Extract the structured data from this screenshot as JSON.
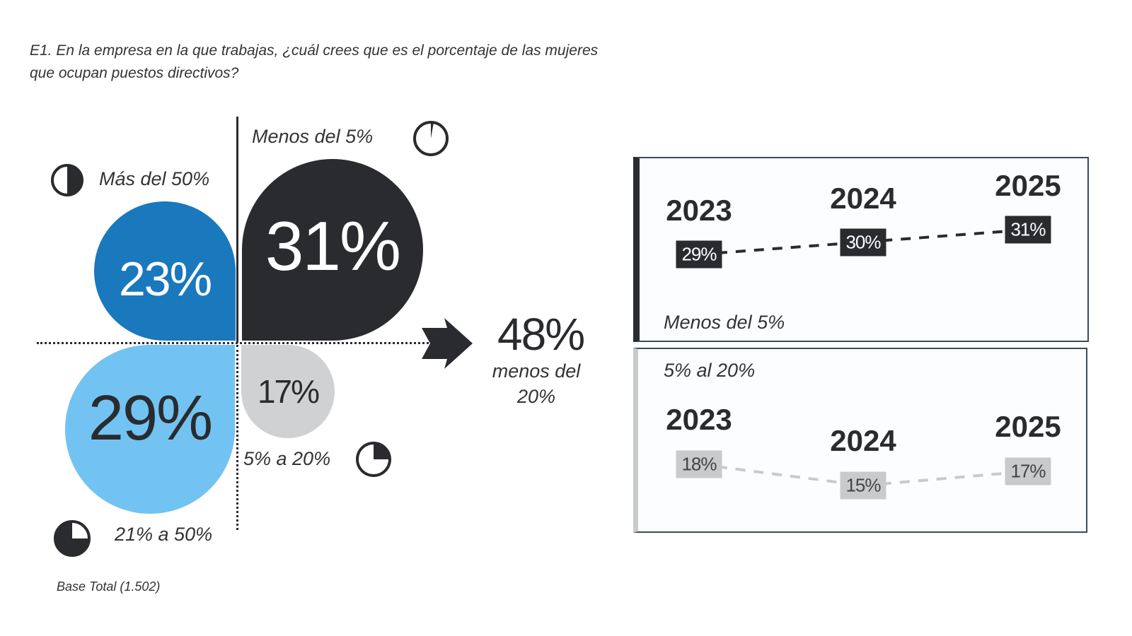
{
  "question": "E1. En la empresa en la que trabajas, ¿cuál crees que es el porcentaje de las mujeres que ocupan puestos directivos?",
  "base": "Base Total (1.502)",
  "quadrants": [
    {
      "label": "Más del 50%",
      "value": "23%",
      "color": "#1a78bd",
      "icon": "pie-half-icon"
    },
    {
      "label": "Menos del 5%",
      "value": "31%",
      "color": "#2a2b2e",
      "icon": "pie-sliver-icon"
    },
    {
      "label": "21% a 50%",
      "value": "29%",
      "color": "#72c3f2",
      "icon": "pie-quarter-icon"
    },
    {
      "label": "5% a 20%",
      "value": "17%",
      "color": "#cfd1d2",
      "icon": "pie-eighth-icon"
    }
  ],
  "summary": {
    "value": "48%",
    "line1": "menos del",
    "line2": "20%"
  },
  "chart_data": [
    {
      "type": "line",
      "title": "Menos del 5%",
      "categories": [
        "2023",
        "2024",
        "2025"
      ],
      "values": [
        29,
        30,
        31
      ],
      "labels": [
        "29%",
        "30%",
        "31%"
      ],
      "color": "#2a2b2e",
      "line_style": "dashed"
    },
    {
      "type": "line",
      "title": "5% al 20%",
      "categories": [
        "2023",
        "2024",
        "2025"
      ],
      "values": [
        18,
        15,
        17
      ],
      "labels": [
        "18%",
        "15%",
        "17%"
      ],
      "color": "#c8cacb",
      "line_style": "dashed"
    }
  ]
}
